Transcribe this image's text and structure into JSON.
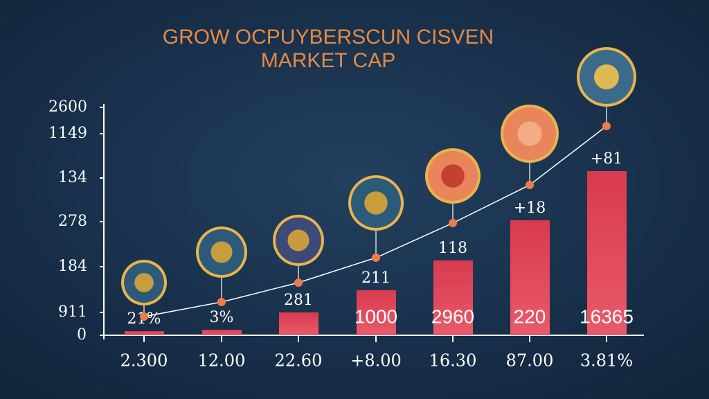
{
  "title": {
    "line1": "GROW OCPUYBERSCUN CISVEN",
    "line2": "MARKET CAP"
  },
  "y_axis_labels": [
    "2600",
    "1149",
    "134",
    "278",
    "184",
    "911",
    "0"
  ],
  "columns": [
    {
      "x_label": "2.300",
      "top_label": "21%"
    },
    {
      "x_label": "12.00",
      "top_label": "3%"
    },
    {
      "x_label": "22.60",
      "top_label": "281"
    },
    {
      "x_label": "+8.00",
      "top_label": "211",
      "bar_label": "1000"
    },
    {
      "x_label": "16.30",
      "top_label": "118",
      "bar_label": "2960"
    },
    {
      "x_label": "87.00",
      "top_label": "+18",
      "bar_label": "220"
    },
    {
      "x_label": "3.81%",
      "top_label": "+81",
      "bar_label": "16365"
    }
  ]
}
